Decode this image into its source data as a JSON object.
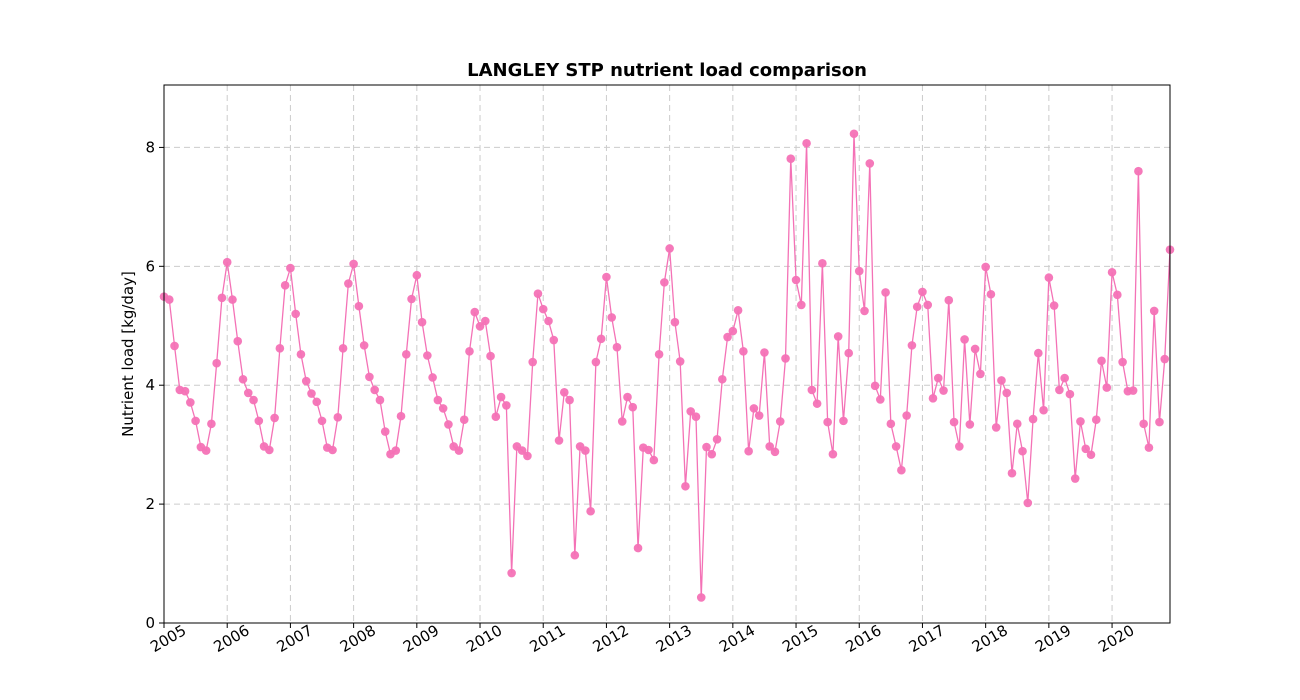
{
  "chart_data": {
    "type": "line",
    "title": "LANGLEY STP nutrient load comparison",
    "xlabel": "",
    "ylabel": "Nutrient load [kg/day]",
    "x_tick_labels": [
      "2005",
      "2006",
      "2007",
      "2008",
      "2009",
      "2010",
      "2011",
      "2012",
      "2013",
      "2014",
      "2015",
      "2016",
      "2017",
      "2018",
      "2019",
      "2020"
    ],
    "y_tick_labels": [
      "0",
      "2",
      "4",
      "6",
      "8"
    ],
    "y_ticks": [
      0,
      2,
      4,
      6,
      8
    ],
    "xlim": [
      "2005-01",
      "2020-12"
    ],
    "ylim": [
      0,
      9.05
    ],
    "grid": true,
    "color": "#f472b6",
    "series": [
      {
        "x_start": "2005-01",
        "frequency": "monthly",
        "values": [
          5.49,
          5.44,
          4.66,
          3.92,
          3.9,
          3.71,
          3.4,
          2.96,
          2.9,
          3.35,
          4.37,
          5.47,
          6.07,
          5.44,
          4.74,
          4.1,
          3.87,
          3.75,
          3.4,
          2.97,
          2.91,
          3.45,
          4.62,
          5.68,
          5.97,
          5.2,
          4.52,
          4.07,
          3.86,
          3.72,
          3.4,
          2.95,
          2.91,
          3.46,
          4.62,
          5.71,
          6.04,
          5.33,
          4.67,
          4.14,
          3.92,
          3.75,
          3.22,
          2.84,
          2.9,
          3.48,
          4.52,
          5.45,
          5.85,
          5.06,
          4.5,
          4.13,
          3.75,
          3.61,
          3.34,
          2.97,
          2.9,
          3.42,
          4.57,
          5.23,
          4.99,
          5.08,
          4.49,
          3.47,
          3.8,
          3.66,
          0.84,
          2.97,
          2.9,
          2.81,
          4.39,
          5.54,
          5.28,
          5.08,
          4.76,
          3.07,
          3.88,
          3.75,
          1.14,
          2.97,
          2.9,
          1.88,
          4.39,
          4.78,
          5.82,
          5.14,
          4.64,
          3.39,
          3.8,
          3.63,
          1.26,
          2.95,
          2.91,
          2.74,
          4.52,
          5.73,
          6.3,
          5.06,
          4.4,
          2.3,
          3.56,
          3.47,
          0.43,
          2.96,
          2.84,
          3.09,
          4.1,
          4.81,
          4.91,
          5.26,
          4.57,
          2.89,
          3.61,
          3.49,
          4.55,
          2.97,
          2.88,
          3.39,
          4.45,
          7.81,
          5.77,
          5.35,
          8.07,
          3.92,
          3.69,
          6.05,
          3.38,
          2.84,
          4.82,
          3.4,
          4.54,
          8.23,
          5.92,
          5.25,
          7.73,
          3.99,
          3.76,
          5.56,
          3.35,
          2.97,
          2.57,
          3.49,
          4.67,
          5.32,
          5.57,
          5.35,
          3.78,
          4.12,
          3.91,
          5.43,
          3.38,
          2.97,
          4.77,
          3.34,
          4.61,
          4.19,
          5.99,
          5.53,
          3.29,
          4.08,
          3.87,
          2.52,
          3.35,
          2.89,
          2.02,
          3.43,
          4.54,
          3.58,
          5.81,
          5.34,
          3.92,
          4.12,
          3.85,
          2.43,
          3.39,
          2.93,
          2.83,
          3.42,
          4.41,
          3.96,
          5.9,
          5.52,
          4.39,
          3.9,
          3.91,
          7.6,
          3.35,
          2.95,
          5.25,
          3.38,
          4.44,
          6.28
        ]
      }
    ]
  }
}
